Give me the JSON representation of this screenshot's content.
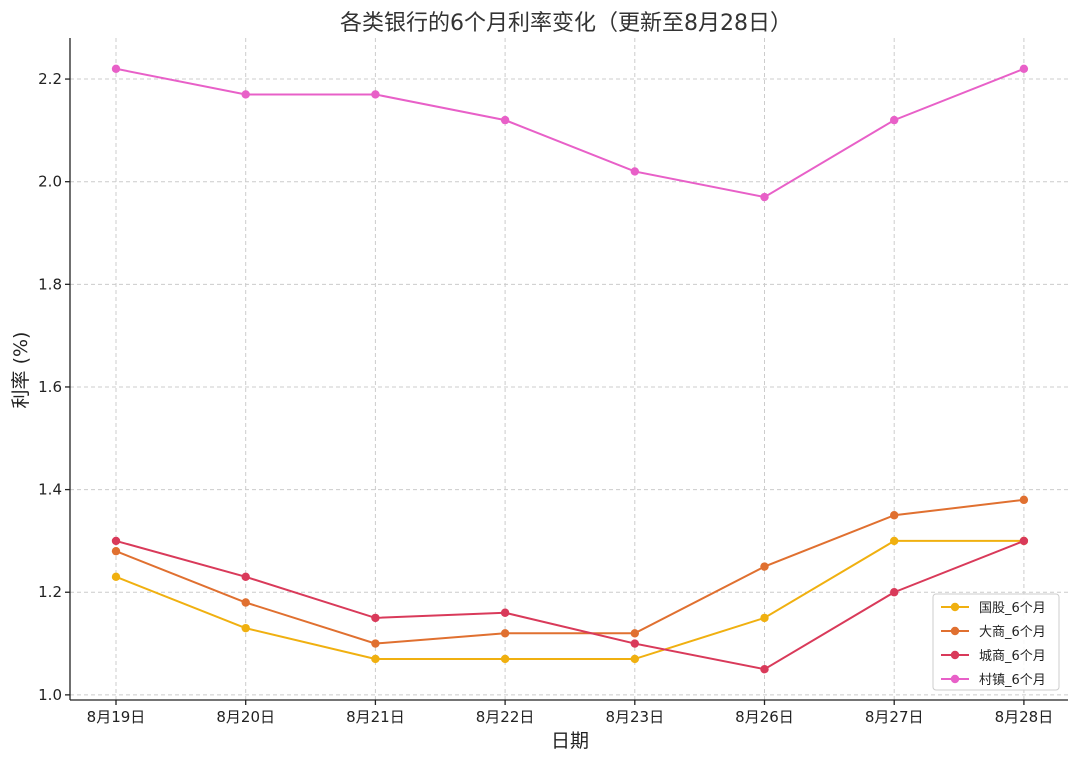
{
  "chart_data": {
    "type": "line",
    "title": "各类银行的6个月利率变化（更新至8月28日）",
    "xlabel": "日期",
    "ylabel": "利率 (%)",
    "categories": [
      "8月19日",
      "8月20日",
      "8月21日",
      "8月22日",
      "8月23日",
      "8月26日",
      "8月27日",
      "8月28日"
    ],
    "ylim": [
      0.99,
      2.28
    ],
    "yticks": [
      1.0,
      1.2,
      1.4,
      1.6,
      1.8,
      2.0,
      2.2
    ],
    "grid": true,
    "legend_position": "bottom-right",
    "series": [
      {
        "name": "国股_6个月",
        "color": "#f0b010",
        "values": [
          1.23,
          1.13,
          1.07,
          1.07,
          1.07,
          1.15,
          1.3,
          1.3
        ]
      },
      {
        "name": "大商_6个月",
        "color": "#e07030",
        "values": [
          1.28,
          1.18,
          1.1,
          1.12,
          1.12,
          1.25,
          1.35,
          1.38
        ]
      },
      {
        "name": "城商_6个月",
        "color": "#d93a5a",
        "values": [
          1.3,
          1.23,
          1.15,
          1.16,
          1.1,
          1.05,
          1.2,
          1.3
        ]
      },
      {
        "name": "村镇_6个月",
        "color": "#e860c8",
        "values": [
          2.22,
          2.17,
          2.17,
          2.12,
          2.02,
          1.97,
          2.12,
          2.22
        ]
      }
    ]
  }
}
